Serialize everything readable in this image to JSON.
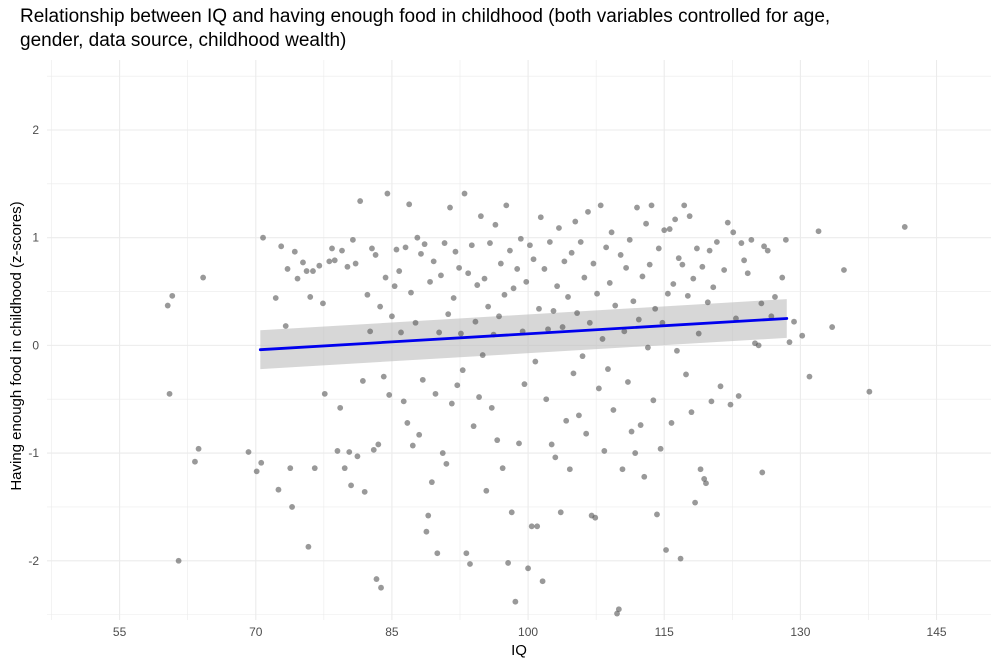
{
  "chart_data": {
    "type": "scatter",
    "title_lines": [
      "Relationship between IQ and having enough food in childhood (both variables controlled for age,",
      "gender, data source, childhood wealth)"
    ],
    "xlabel": "IQ",
    "ylabel": "Having enough food in childhood (z-scores)",
    "xlim": [
      47,
      151
    ],
    "ylim": [
      -2.55,
      2.65
    ],
    "x_ticks": [
      55,
      70,
      85,
      100,
      115,
      130,
      145
    ],
    "y_ticks": [
      -2,
      -1,
      0,
      1,
      2
    ],
    "grid": true,
    "colors": {
      "points": "#555555",
      "fit_line": "#0000ee",
      "confidence_band": "#bdbdbd",
      "grid": "#ebebeb"
    },
    "regression": {
      "start": [
        70.5,
        -0.04
      ],
      "end": [
        128.5,
        0.25
      ],
      "band_start": [
        -0.22,
        0.14
      ],
      "band_end": [
        0.07,
        0.43
      ]
    },
    "points": [
      [
        60.3,
        0.37
      ],
      [
        60.5,
        -0.45
      ],
      [
        60.8,
        0.46
      ],
      [
        61.5,
        -2.0
      ],
      [
        63.3,
        -1.08
      ],
      [
        63.7,
        -0.96
      ],
      [
        64.2,
        0.63
      ],
      [
        69.2,
        -0.99
      ],
      [
        70.1,
        -1.17
      ],
      [
        70.6,
        -1.09
      ],
      [
        70.8,
        1.0
      ],
      [
        72.2,
        0.44
      ],
      [
        72.5,
        -1.34
      ],
      [
        72.8,
        0.92
      ],
      [
        73.3,
        0.18
      ],
      [
        73.5,
        0.71
      ],
      [
        73.8,
        -1.14
      ],
      [
        74.0,
        -1.5
      ],
      [
        74.3,
        0.87
      ],
      [
        74.6,
        0.62
      ],
      [
        75.2,
        0.77
      ],
      [
        75.6,
        0.69
      ],
      [
        75.8,
        -1.87
      ],
      [
        76.0,
        0.45
      ],
      [
        76.3,
        0.69
      ],
      [
        76.5,
        -1.14
      ],
      [
        77.0,
        0.74
      ],
      [
        77.4,
        0.39
      ],
      [
        77.6,
        -0.45
      ],
      [
        78.1,
        0.78
      ],
      [
        78.4,
        0.9
      ],
      [
        78.7,
        0.79
      ],
      [
        79.0,
        -0.98
      ],
      [
        79.3,
        -0.58
      ],
      [
        79.5,
        0.88
      ],
      [
        79.8,
        -1.14
      ],
      [
        80.1,
        0.73
      ],
      [
        80.3,
        -0.99
      ],
      [
        80.5,
        -1.3
      ],
      [
        80.7,
        0.98
      ],
      [
        81.0,
        0.76
      ],
      [
        81.2,
        -1.03
      ],
      [
        81.5,
        1.34
      ],
      [
        81.8,
        -0.33
      ],
      [
        82.0,
        -1.36
      ],
      [
        82.3,
        0.47
      ],
      [
        82.6,
        0.13
      ],
      [
        82.8,
        0.9
      ],
      [
        83.0,
        -0.97
      ],
      [
        83.2,
        0.84
      ],
      [
        83.3,
        -2.17
      ],
      [
        83.5,
        -0.92
      ],
      [
        83.7,
        0.36
      ],
      [
        83.8,
        -2.25
      ],
      [
        84.1,
        -0.29
      ],
      [
        84.3,
        0.63
      ],
      [
        84.5,
        1.41
      ],
      [
        84.7,
        -0.46
      ],
      [
        85.0,
        0.27
      ],
      [
        85.3,
        0.55
      ],
      [
        85.5,
        0.89
      ],
      [
        85.8,
        0.69
      ],
      [
        86.0,
        0.12
      ],
      [
        86.3,
        -0.52
      ],
      [
        86.5,
        0.91
      ],
      [
        86.7,
        -0.72
      ],
      [
        86.9,
        1.31
      ],
      [
        87.1,
        0.49
      ],
      [
        87.3,
        -0.93
      ],
      [
        87.6,
        0.21
      ],
      [
        87.8,
        1.0
      ],
      [
        88.0,
        -0.83
      ],
      [
        88.2,
        0.85
      ],
      [
        88.4,
        -0.32
      ],
      [
        88.6,
        0.94
      ],
      [
        88.8,
        -1.73
      ],
      [
        89.0,
        -1.58
      ],
      [
        89.2,
        0.59
      ],
      [
        89.4,
        -1.27
      ],
      [
        89.6,
        0.78
      ],
      [
        89.8,
        -0.45
      ],
      [
        90.0,
        -1.93
      ],
      [
        90.2,
        0.12
      ],
      [
        90.4,
        0.65
      ],
      [
        90.6,
        -1.0
      ],
      [
        90.8,
        0.95
      ],
      [
        91.0,
        -1.1
      ],
      [
        91.2,
        0.29
      ],
      [
        91.4,
        1.28
      ],
      [
        91.6,
        -0.54
      ],
      [
        91.8,
        0.44
      ],
      [
        92.0,
        0.87
      ],
      [
        92.2,
        -0.37
      ],
      [
        92.4,
        0.72
      ],
      [
        92.6,
        0.11
      ],
      [
        92.8,
        -0.23
      ],
      [
        93.0,
        1.41
      ],
      [
        93.2,
        -1.93
      ],
      [
        93.4,
        0.67
      ],
      [
        93.6,
        -2.03
      ],
      [
        93.8,
        0.93
      ],
      [
        94.0,
        -0.75
      ],
      [
        94.2,
        0.22
      ],
      [
        94.4,
        0.56
      ],
      [
        94.6,
        -0.48
      ],
      [
        94.8,
        1.2
      ],
      [
        95.0,
        -0.09
      ],
      [
        95.2,
        0.62
      ],
      [
        95.4,
        -1.35
      ],
      [
        95.6,
        0.36
      ],
      [
        95.8,
        0.95
      ],
      [
        96.0,
        -0.58
      ],
      [
        96.2,
        0.1
      ],
      [
        96.4,
        1.12
      ],
      [
        96.6,
        -0.88
      ],
      [
        96.8,
        0.27
      ],
      [
        97.0,
        0.76
      ],
      [
        97.2,
        -1.14
      ],
      [
        97.4,
        0.47
      ],
      [
        97.6,
        1.3
      ],
      [
        97.8,
        -2.02
      ],
      [
        98.0,
        0.88
      ],
      [
        98.2,
        -1.55
      ],
      [
        98.4,
        0.53
      ],
      [
        98.6,
        -2.38
      ],
      [
        98.8,
        0.71
      ],
      [
        99.0,
        -0.91
      ],
      [
        99.2,
        0.99
      ],
      [
        99.4,
        0.13
      ],
      [
        99.6,
        -0.36
      ],
      [
        99.8,
        0.59
      ],
      [
        100.0,
        -2.07
      ],
      [
        100.2,
        0.93
      ],
      [
        100.4,
        -1.68
      ],
      [
        100.6,
        0.8
      ],
      [
        100.8,
        -0.15
      ],
      [
        101.0,
        -1.68
      ],
      [
        101.2,
        0.34
      ],
      [
        101.4,
        1.19
      ],
      [
        101.6,
        -2.19
      ],
      [
        101.8,
        0.71
      ],
      [
        102.0,
        -0.5
      ],
      [
        102.2,
        0.15
      ],
      [
        102.4,
        0.96
      ],
      [
        102.6,
        -0.92
      ],
      [
        102.8,
        0.32
      ],
      [
        103.0,
        -1.04
      ],
      [
        103.2,
        0.55
      ],
      [
        103.4,
        1.09
      ],
      [
        103.6,
        -1.55
      ],
      [
        103.8,
        0.17
      ],
      [
        104.0,
        0.78
      ],
      [
        104.2,
        -0.7
      ],
      [
        104.4,
        0.45
      ],
      [
        104.6,
        -1.15
      ],
      [
        104.8,
        0.86
      ],
      [
        105.0,
        -0.26
      ],
      [
        105.2,
        1.15
      ],
      [
        105.4,
        0.3
      ],
      [
        105.6,
        -0.65
      ],
      [
        105.8,
        0.96
      ],
      [
        106.0,
        -0.1
      ],
      [
        106.2,
        0.63
      ],
      [
        106.4,
        -0.82
      ],
      [
        106.6,
        1.24
      ],
      [
        106.8,
        0.21
      ],
      [
        107.0,
        -1.58
      ],
      [
        107.2,
        0.76
      ],
      [
        107.4,
        -1.6
      ],
      [
        107.6,
        0.48
      ],
      [
        107.8,
        -0.4
      ],
      [
        108.0,
        1.3
      ],
      [
        108.2,
        0.06
      ],
      [
        108.4,
        -0.98
      ],
      [
        108.6,
        0.91
      ],
      [
        108.8,
        -0.22
      ],
      [
        109.0,
        0.58
      ],
      [
        109.2,
        1.05
      ],
      [
        109.4,
        -0.6
      ],
      [
        109.6,
        0.37
      ],
      [
        109.8,
        -2.49
      ],
      [
        110.0,
        -2.45
      ],
      [
        110.2,
        0.84
      ],
      [
        110.4,
        -1.15
      ],
      [
        110.6,
        0.13
      ],
      [
        110.8,
        0.72
      ],
      [
        111.0,
        -0.34
      ],
      [
        111.2,
        0.98
      ],
      [
        111.4,
        -0.8
      ],
      [
        111.6,
        0.41
      ],
      [
        111.8,
        -1.0
      ],
      [
        112.0,
        1.28
      ],
      [
        112.2,
        0.24
      ],
      [
        112.4,
        -0.74
      ],
      [
        112.6,
        0.64
      ],
      [
        112.8,
        -1.22
      ],
      [
        113.0,
        1.13
      ],
      [
        113.2,
        -0.02
      ],
      [
        113.4,
        0.75
      ],
      [
        113.6,
        1.3
      ],
      [
        113.8,
        -0.51
      ],
      [
        114.0,
        0.34
      ],
      [
        114.2,
        -1.57
      ],
      [
        114.4,
        0.9
      ],
      [
        114.6,
        -0.96
      ],
      [
        114.8,
        0.21
      ],
      [
        115.0,
        1.07
      ],
      [
        115.2,
        -1.9
      ],
      [
        115.4,
        0.48
      ],
      [
        115.6,
        1.08
      ],
      [
        115.8,
        -0.72
      ],
      [
        116.0,
        0.57
      ],
      [
        116.2,
        1.17
      ],
      [
        116.4,
        -0.05
      ],
      [
        116.6,
        0.81
      ],
      [
        116.8,
        -1.98
      ],
      [
        117.0,
        0.75
      ],
      [
        117.2,
        1.3
      ],
      [
        117.4,
        -0.27
      ],
      [
        117.6,
        0.46
      ],
      [
        117.8,
        1.2
      ],
      [
        118.0,
        -0.62
      ],
      [
        118.2,
        0.62
      ],
      [
        118.4,
        -1.46
      ],
      [
        118.6,
        0.9
      ],
      [
        118.8,
        0.11
      ],
      [
        119.0,
        -1.15
      ],
      [
        119.2,
        0.73
      ],
      [
        119.4,
        -1.24
      ],
      [
        119.6,
        -1.28
      ],
      [
        119.8,
        0.4
      ],
      [
        120.0,
        0.88
      ],
      [
        120.2,
        -0.52
      ],
      [
        120.4,
        0.54
      ],
      [
        120.8,
        0.96
      ],
      [
        121.2,
        -0.38
      ],
      [
        121.6,
        0.7
      ],
      [
        122.0,
        1.14
      ],
      [
        122.3,
        -0.55
      ],
      [
        122.6,
        1.05
      ],
      [
        122.9,
        0.25
      ],
      [
        123.2,
        -0.47
      ],
      [
        123.5,
        0.95
      ],
      [
        123.8,
        0.79
      ],
      [
        124.2,
        0.67
      ],
      [
        124.6,
        0.98
      ],
      [
        125.0,
        0.02
      ],
      [
        125.4,
        0.0
      ],
      [
        125.7,
        0.39
      ],
      [
        125.8,
        -1.18
      ],
      [
        126.0,
        0.92
      ],
      [
        126.4,
        0.88
      ],
      [
        126.8,
        0.27
      ],
      [
        127.2,
        0.45
      ],
      [
        128.0,
        0.63
      ],
      [
        128.4,
        0.98
      ],
      [
        128.8,
        0.03
      ],
      [
        129.3,
        0.22
      ],
      [
        130.2,
        0.09
      ],
      [
        131.0,
        -0.29
      ],
      [
        132.0,
        1.06
      ],
      [
        133.5,
        0.17
      ],
      [
        134.8,
        0.7
      ],
      [
        137.6,
        -0.43
      ],
      [
        141.5,
        1.1
      ]
    ]
  }
}
